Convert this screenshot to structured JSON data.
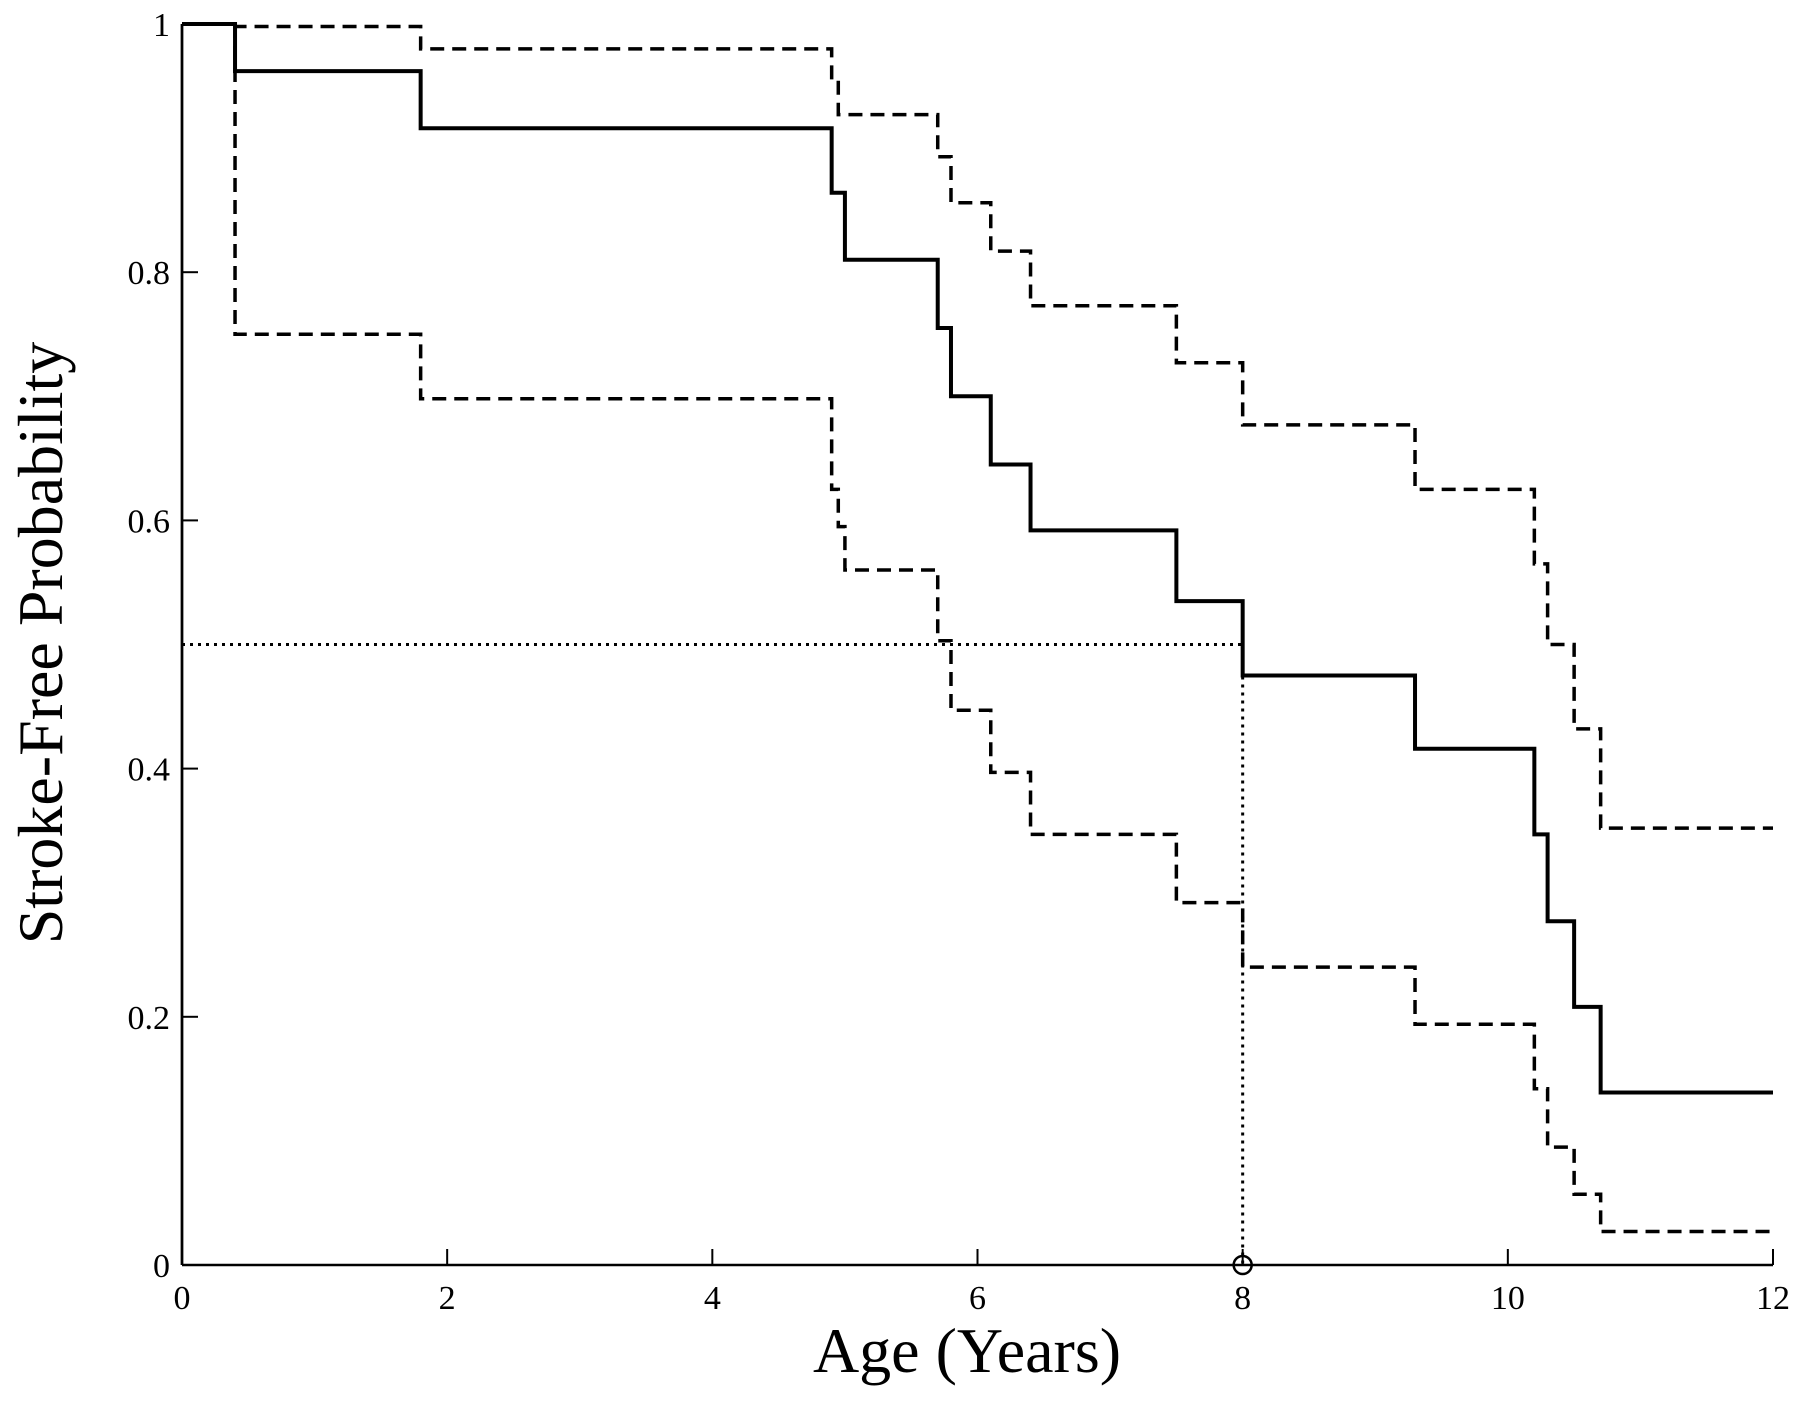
{
  "chart_data": {
    "type": "line",
    "xlabel": "Age (Years)",
    "ylabel": "Stroke-Free Probability",
    "xlim": [
      0,
      12
    ],
    "ylim": [
      0,
      1
    ],
    "x_ticks": [
      "0",
      "2",
      "4",
      "6",
      "8",
      "10",
      "12"
    ],
    "y_ticks": [
      "0",
      "0.2",
      "0.4",
      "0.6",
      "0.8",
      "1"
    ],
    "grid": false,
    "legend": "none",
    "series": [
      {
        "style": "solid",
        "x": [
          0,
          0.4,
          1.8,
          4.9,
          5.0,
          5.7,
          5.8,
          6.1,
          6.4,
          7.5,
          8.0,
          9.3,
          10.2,
          10.3,
          10.5,
          10.7,
          12.0
        ],
        "y": [
          1.0,
          0.962,
          0.916,
          0.864,
          0.81,
          0.755,
          0.7,
          0.645,
          0.592,
          0.535,
          0.475,
          0.416,
          0.347,
          0.277,
          0.208,
          0.139,
          0.139
        ]
      },
      {
        "style": "dashed",
        "x": [
          0.4,
          1.8,
          4.9,
          4.95,
          5.0,
          5.7,
          5.8,
          6.1,
          6.4,
          7.5,
          8.0,
          9.3,
          10.2,
          10.3,
          10.5,
          10.7,
          12.0
        ],
        "y": [
          0.998,
          0.98,
          0.955,
          0.927,
          0.927,
          0.893,
          0.856,
          0.817,
          0.773,
          0.727,
          0.677,
          0.625,
          0.565,
          0.5,
          0.432,
          0.352,
          0.352
        ]
      },
      {
        "style": "dashed",
        "x": [
          0.4,
          1.8,
          4.9,
          4.95,
          5.0,
          5.7,
          5.8,
          6.1,
          6.4,
          7.5,
          8.0,
          9.3,
          10.2,
          10.3,
          10.5,
          10.7,
          12.0
        ],
        "y": [
          0.75,
          0.698,
          0.625,
          0.595,
          0.56,
          0.503,
          0.447,
          0.397,
          0.347,
          0.292,
          0.24,
          0.194,
          0.142,
          0.095,
          0.057,
          0.027,
          0.027
        ]
      }
    ],
    "median_marker": {
      "probability": 0.5,
      "age": 8.0
    }
  }
}
